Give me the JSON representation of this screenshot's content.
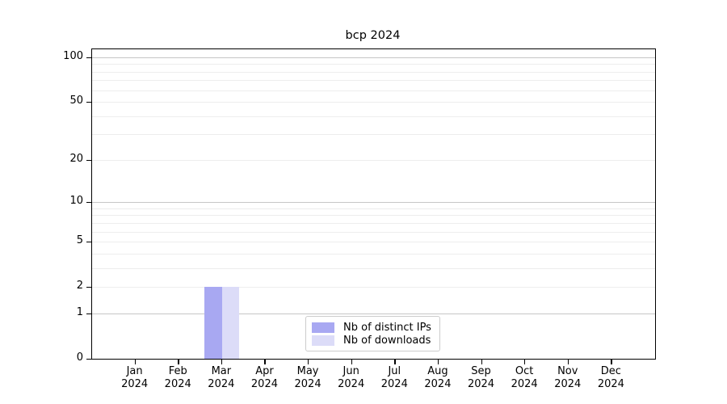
{
  "chart_data": {
    "type": "bar",
    "title": "bcp 2024",
    "categories": [
      {
        "label": "Jan",
        "sub": "2024"
      },
      {
        "label": "Feb",
        "sub": "2024"
      },
      {
        "label": "Mar",
        "sub": "2024"
      },
      {
        "label": "Apr",
        "sub": "2024"
      },
      {
        "label": "May",
        "sub": "2024"
      },
      {
        "label": "Jun",
        "sub": "2024"
      },
      {
        "label": "Jul",
        "sub": "2024"
      },
      {
        "label": "Aug",
        "sub": "2024"
      },
      {
        "label": "Sep",
        "sub": "2024"
      },
      {
        "label": "Oct",
        "sub": "2024"
      },
      {
        "label": "Nov",
        "sub": "2024"
      },
      {
        "label": "Dec",
        "sub": "2024"
      }
    ],
    "series": [
      {
        "name": "Nb of distinct IPs",
        "color": "#a8a8f2",
        "values": [
          0,
          0,
          2,
          0,
          0,
          0,
          0,
          0,
          0,
          0,
          0,
          0
        ]
      },
      {
        "name": "Nb of downloads",
        "color": "#dcdcf8",
        "values": [
          0,
          0,
          2,
          0,
          0,
          0,
          0,
          0,
          0,
          0,
          0,
          0
        ]
      }
    ],
    "xlabel": "",
    "ylabel": "",
    "yscale": "log1p",
    "ylim": [
      0,
      113
    ],
    "yticks": [
      0,
      1,
      2,
      5,
      10,
      20,
      50,
      100
    ],
    "grid": {
      "major_values": [
        1,
        10,
        100
      ],
      "minor_values": [
        2,
        3,
        4,
        5,
        6,
        7,
        8,
        9,
        20,
        30,
        40,
        50,
        60,
        70,
        80,
        90
      ]
    },
    "legend_position": "lower center"
  }
}
